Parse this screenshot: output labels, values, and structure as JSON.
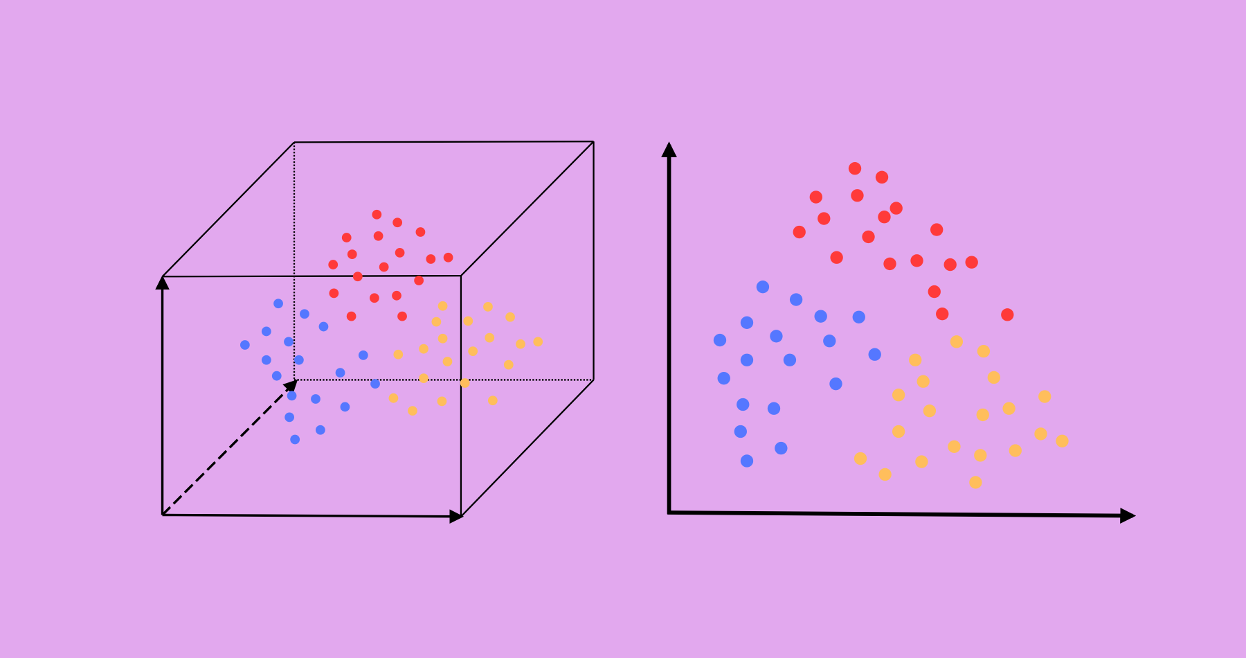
{
  "cluster_colors": [
    "#ff3a3a",
    "#ffbe5c",
    "#5577ff"
  ]
}
